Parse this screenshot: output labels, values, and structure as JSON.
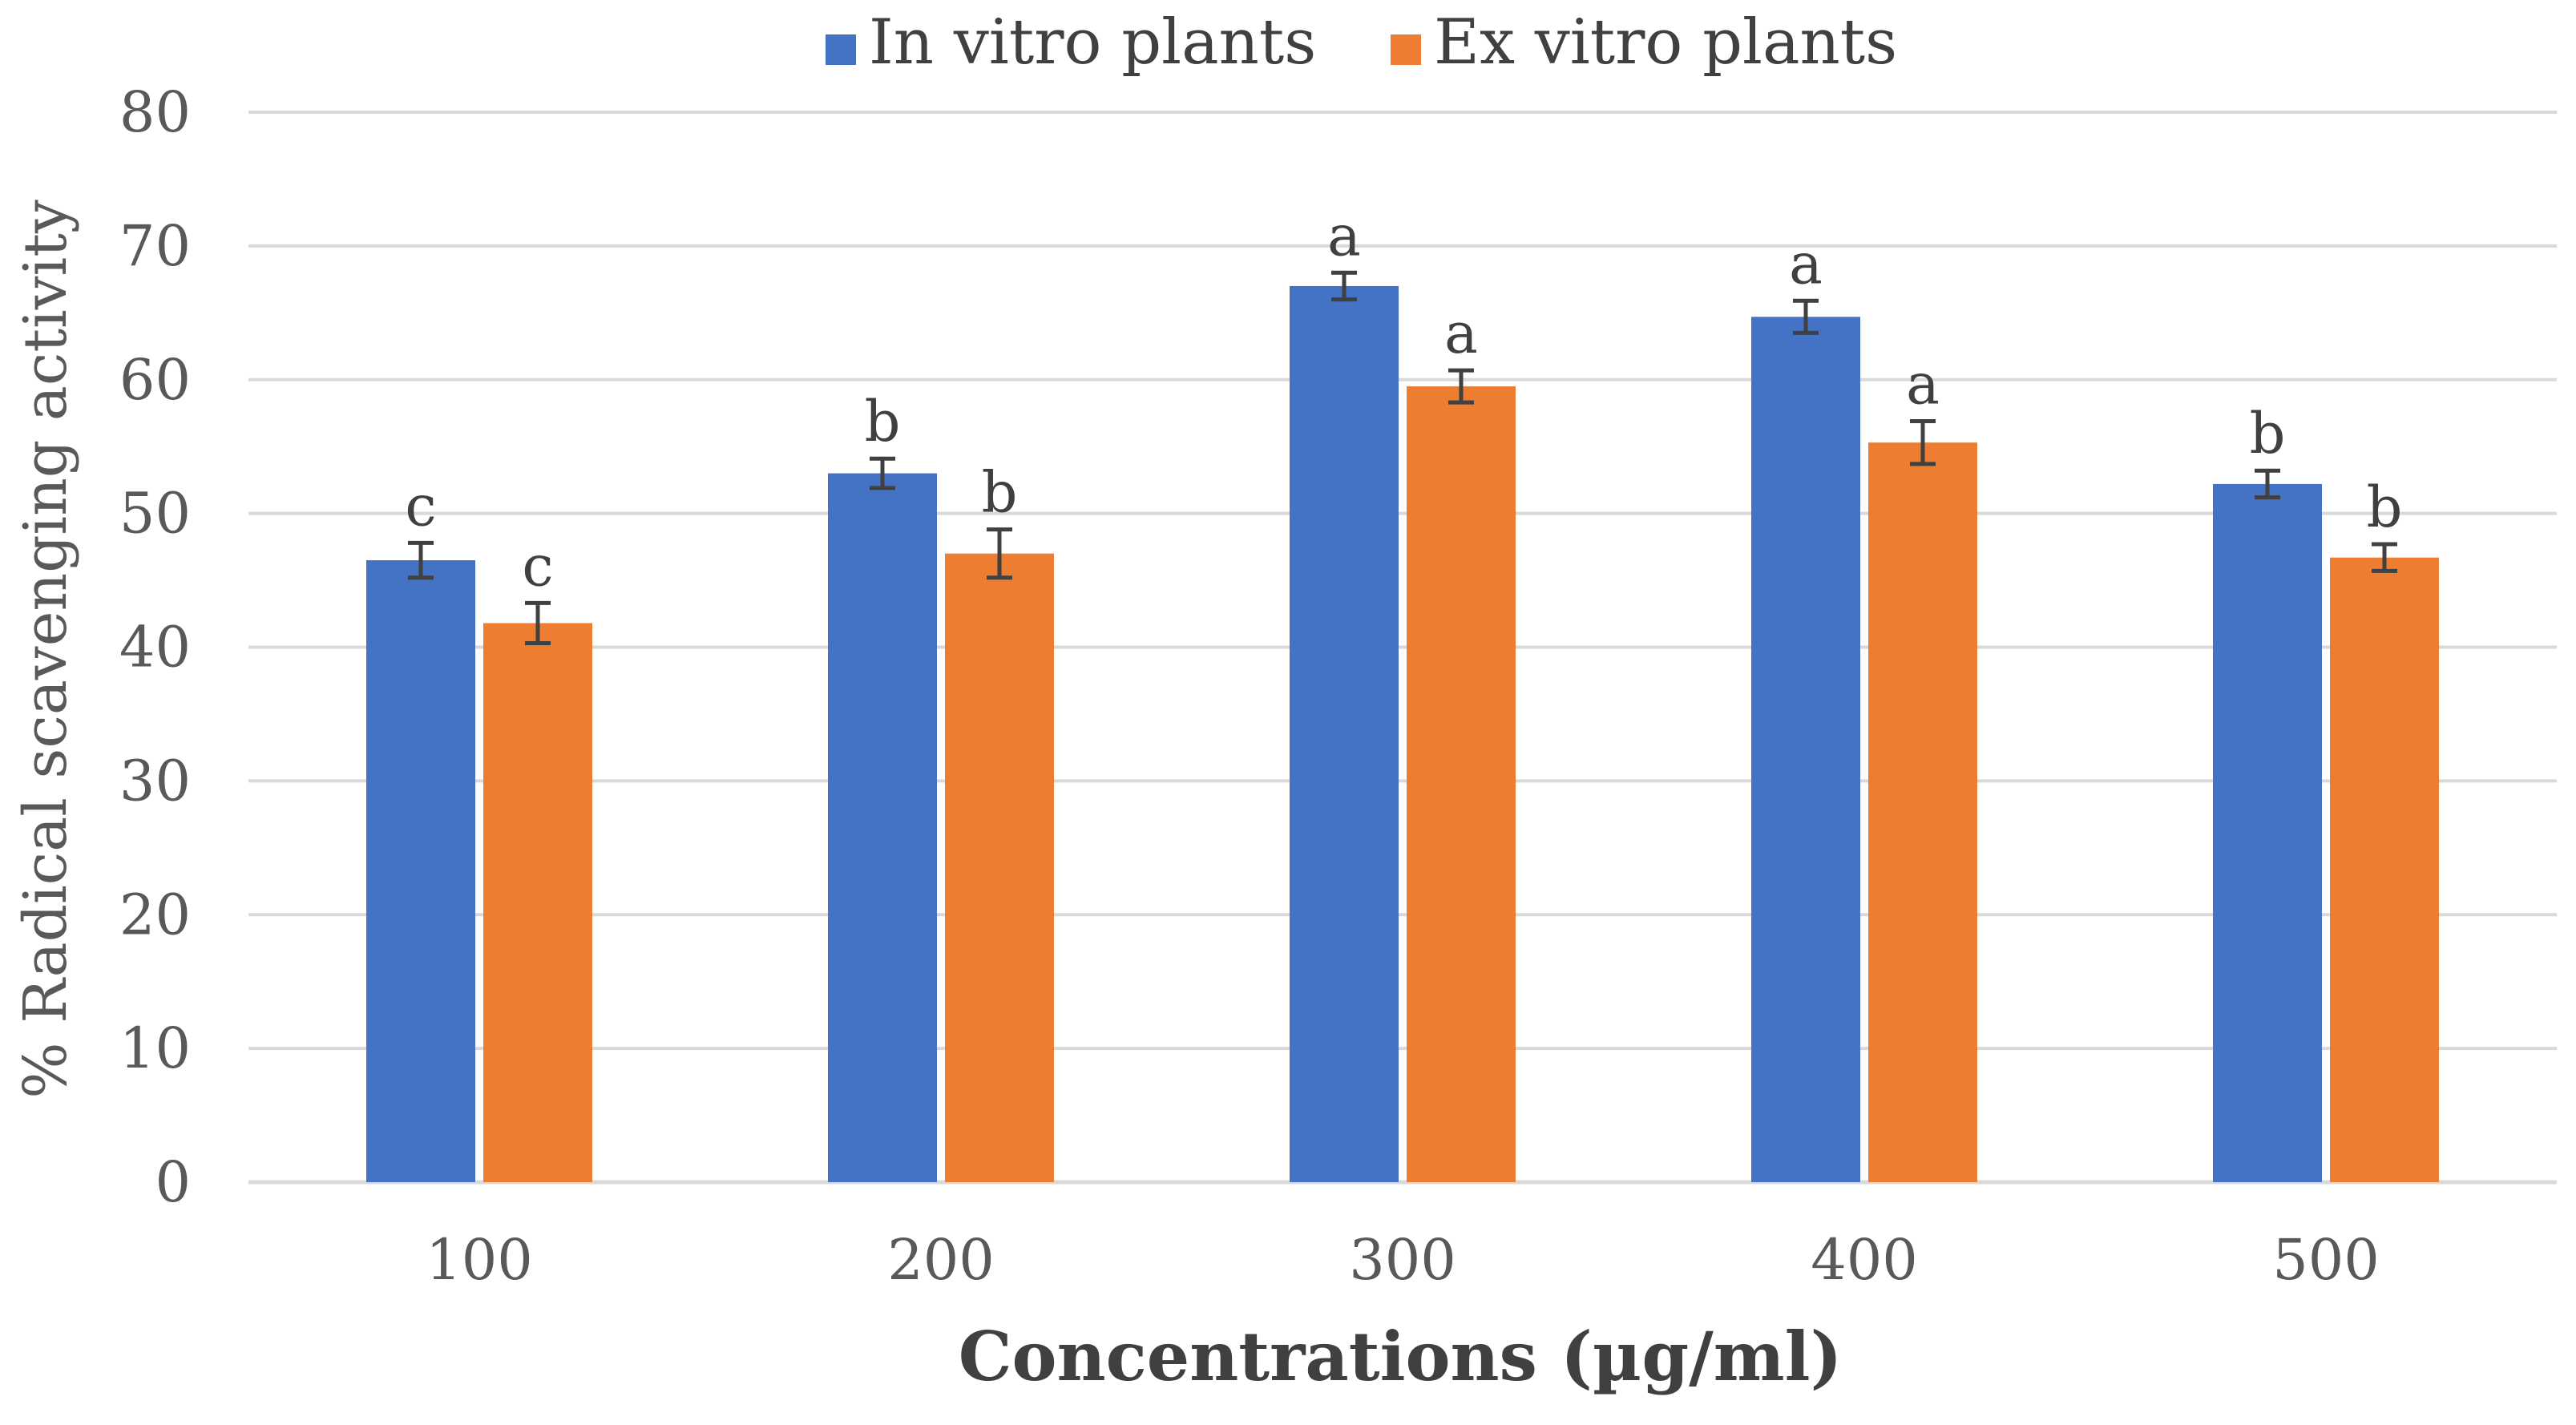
{
  "chart_data": {
    "type": "bar",
    "title": "",
    "xlabel": "Concentrations (µg/ml)",
    "ylabel": "% Radical scavenging activity",
    "ylim": [
      0,
      80
    ],
    "yticks": [
      0,
      10,
      20,
      30,
      40,
      50,
      60,
      70,
      80
    ],
    "grid": true,
    "legend_position": "top-center",
    "categories": [
      "100",
      "200",
      "300",
      "400",
      "500"
    ],
    "series": [
      {
        "name": "In vitro plants",
        "color": "#4472C4",
        "values": [
          46.5,
          53.0,
          67.0,
          64.7,
          52.2
        ],
        "errors": [
          1.3,
          1.1,
          1.0,
          1.2,
          1.0
        ],
        "labels": [
          "c",
          "b",
          "a",
          "a",
          "b"
        ]
      },
      {
        "name": "Ex vitro plants",
        "color": "#ED7D31",
        "values": [
          41.8,
          47.0,
          59.5,
          55.3,
          46.7
        ],
        "errors": [
          1.5,
          1.8,
          1.2,
          1.6,
          1.0
        ],
        "labels": [
          "c",
          "b",
          "a",
          "a",
          "b"
        ]
      }
    ]
  }
}
